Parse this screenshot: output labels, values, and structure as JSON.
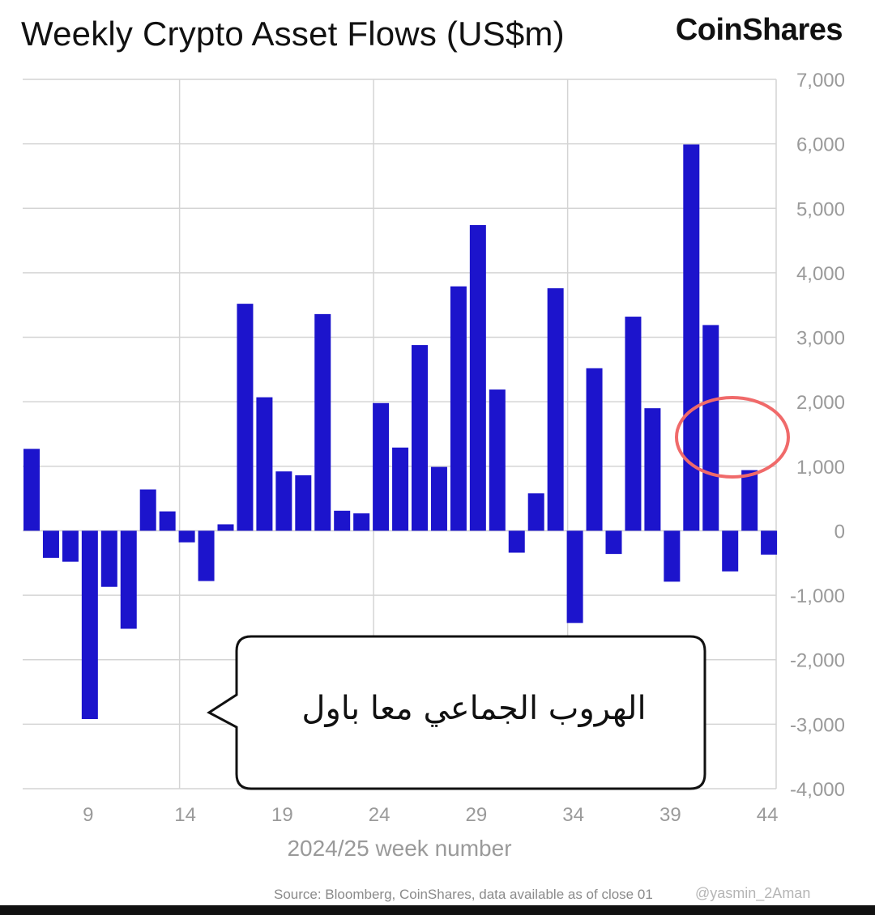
{
  "header": {
    "title": "Weekly Crypto Asset Flows (US$m)",
    "brand": "CoinShares"
  },
  "colors": {
    "bar": "#1c14cc",
    "grid": "#d4d4d4",
    "axis_text": "#9a9a9a",
    "annotation_circle": "#f06a6a"
  },
  "chart_data": {
    "type": "bar",
    "title": "Weekly Crypto Asset Flows (US$m)",
    "xlabel": "2024/25 week number",
    "ylabel": "",
    "ylim": [
      -4000,
      7000
    ],
    "y_ticks": [
      7000,
      6000,
      5000,
      4000,
      3000,
      2000,
      1000,
      0,
      -1000,
      -2000,
      -3000,
      -4000
    ],
    "y_tick_labels": [
      "7,000",
      "6,000",
      "5,000",
      "4,000",
      "3,000",
      "2,000",
      "1,000",
      "0",
      "-1,000",
      "-2,000",
      "-3,000",
      "-4,000"
    ],
    "x_tick_labels": [
      "9",
      "14",
      "19",
      "24",
      "29",
      "34",
      "39",
      "44"
    ],
    "x_tick_weeks": [
      9,
      14,
      19,
      24,
      29,
      34,
      39,
      44
    ],
    "x_grid_weeks": [
      14,
      24,
      34
    ],
    "grid": true,
    "weeks": [
      6,
      7,
      8,
      9,
      10,
      11,
      12,
      13,
      14,
      15,
      16,
      17,
      18,
      19,
      20,
      21,
      22,
      23,
      24,
      25,
      26,
      27,
      28,
      29,
      30,
      31,
      32,
      33,
      34,
      35,
      36,
      37,
      38,
      39,
      40,
      41,
      42,
      43,
      44
    ],
    "values": [
      1270,
      -420,
      -480,
      -2920,
      -870,
      -1520,
      640,
      300,
      -180,
      -780,
      100,
      3520,
      2070,
      920,
      860,
      3360,
      310,
      270,
      1980,
      1290,
      2880,
      990,
      3790,
      4740,
      2190,
      -340,
      580,
      3760,
      -1430,
      2520,
      -360,
      3320,
      1900,
      -790,
      5990,
      3190,
      -630,
      940,
      -370
    ]
  },
  "annotation": {
    "callout_text": "الهروب الجماعي معا باول",
    "highlight_week": 42
  },
  "footer": {
    "source": "Source: Bloomberg, CoinShares, data available as of close 01",
    "watermark": "@yasmin_2Aman"
  }
}
